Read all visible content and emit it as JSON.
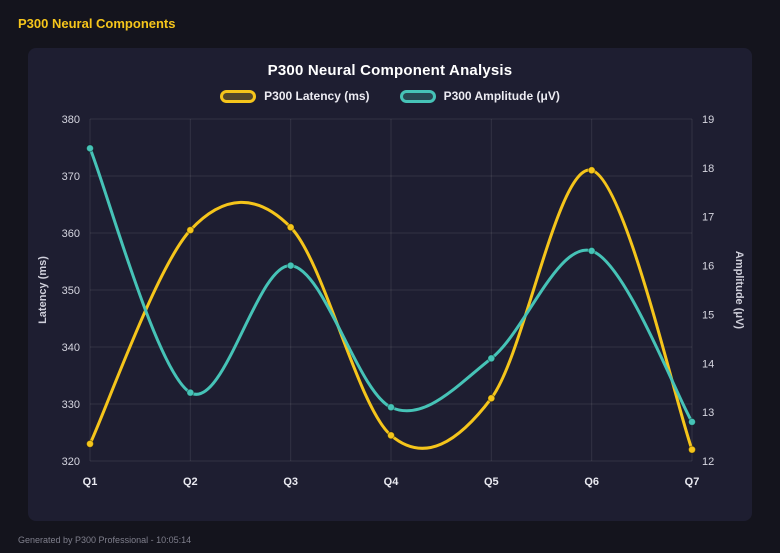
{
  "header": {
    "title": "P300 Neural Components"
  },
  "footer": {
    "text": "Generated by P300 Professional - 10:05:14"
  },
  "chart_data": {
    "type": "line",
    "title": "P300 Neural Component Analysis",
    "categories": [
      "Q1",
      "Q2",
      "Q3",
      "Q4",
      "Q5",
      "Q6",
      "Q7"
    ],
    "series": [
      {
        "name": "P300 Latency (ms)",
        "axis": "left",
        "color": "#f5c51b",
        "values": [
          323,
          360.5,
          361,
          324.5,
          331,
          371,
          322
        ]
      },
      {
        "name": "P300 Amplitude (μV)",
        "axis": "right",
        "color": "#46c3b7",
        "values": [
          18.4,
          13.4,
          16,
          13.1,
          14.1,
          16.3,
          12.8
        ]
      }
    ],
    "left_axis": {
      "label": "Latency (ms)",
      "min": 320,
      "max": 380,
      "ticks": [
        320,
        330,
        340,
        350,
        360,
        370,
        380
      ]
    },
    "right_axis": {
      "label": "Amplitude (μV)",
      "min": 12,
      "max": 19,
      "ticks": [
        12,
        13,
        14,
        15,
        16,
        17,
        18,
        19
      ]
    },
    "grid": true,
    "legend_position": "top",
    "smooth": true
  },
  "colors": {
    "background": "#14141d",
    "card": "#1e1e31",
    "grid": "rgba(255,255,255,0.09)",
    "tick_text": "#d6d6e0",
    "axis_title_text": "#cfcfda",
    "title_text": "#ffffff",
    "accent_yellow": "#f5c51b",
    "accent_teal": "#46c3b7"
  }
}
